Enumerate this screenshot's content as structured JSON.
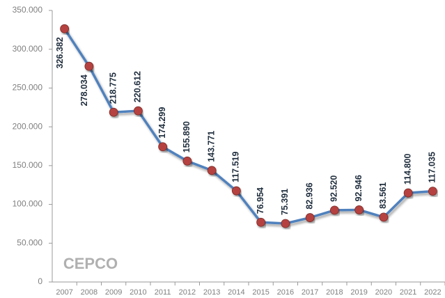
{
  "chart_data": {
    "type": "line",
    "categories": [
      "2007",
      "2008",
      "2009",
      "2010",
      "2011",
      "2012",
      "2013",
      "2014",
      "2015",
      "2016",
      "2017",
      "2018",
      "2019",
      "2020",
      "2021",
      "2022"
    ],
    "series": [
      {
        "color": "#4f81bd",
        "marker_color": "#b5423f",
        "values": [
          326382,
          278034,
          218775,
          220612,
          174299,
          155890,
          143771,
          117519,
          76954,
          75391,
          82936,
          92520,
          92946,
          83561,
          114800,
          117035
        ],
        "value_labels": [
          "326.382",
          "278.034",
          "218.775",
          "220.612",
          "174.299",
          "155.890",
          "143.771",
          "117.519",
          "76.954",
          "75.391",
          "82.936",
          "92.520",
          "92.946",
          "83.561",
          "114.800",
          "117.035"
        ]
      }
    ],
    "ylim": [
      0,
      350000
    ],
    "yticks": [
      0,
      {
        "value": 50000,
        "label": "50.000"
      },
      {
        "value": 100000,
        "label": "100.000"
      },
      {
        "value": 150000,
        "label": "150.000"
      },
      {
        "value": 200000,
        "label": "200.000"
      },
      {
        "value": 250000,
        "label": "250.000"
      },
      {
        "value": 300000,
        "label": "300.000"
      },
      {
        "value": 350000,
        "label": "350.000"
      }
    ],
    "grid": false,
    "watermark": "CEPCO"
  }
}
